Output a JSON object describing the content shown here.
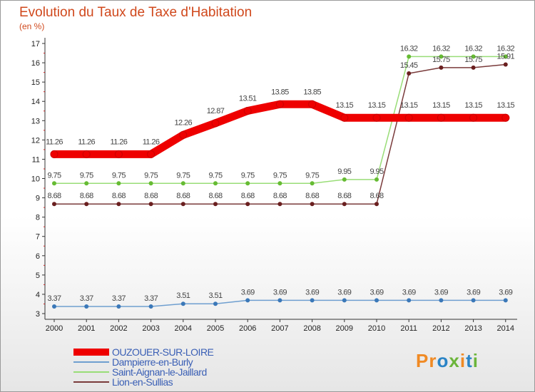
{
  "header": {
    "title": "Evolution du Taux de Taxe d'Habitation",
    "unit": "(en %)"
  },
  "logo": {
    "text": "Proxiti",
    "color_orange": "#f08a24",
    "color_blue": "#2a84c6",
    "color_green": "#6bb53a"
  },
  "chart_data": {
    "type": "line",
    "title": "Evolution du Taux de Taxe d'Habitation",
    "ylabel": "(en %)",
    "xlabel": "",
    "ylim": [
      3,
      17
    ],
    "yticks": [
      3,
      4,
      5,
      6,
      7,
      8,
      9,
      10,
      11,
      12,
      13,
      14,
      15,
      16,
      17
    ],
    "grid": false,
    "legend_position": "bottom-left",
    "categories": [
      "2000",
      "2001",
      "2002",
      "2003",
      "2004",
      "2005",
      "2006",
      "2007",
      "2008",
      "2009",
      "2010",
      "2011",
      "2012",
      "2013",
      "2014"
    ],
    "series": [
      {
        "name": "OUZOUER-SUR-LOIRE",
        "color": "#ee0000",
        "marker": "#ee0000",
        "thick": true,
        "values": [
          11.26,
          11.26,
          11.26,
          11.26,
          12.26,
          12.87,
          13.51,
          13.85,
          13.85,
          13.15,
          13.15,
          13.15,
          13.15,
          13.15,
          13.15
        ],
        "labels": [
          "11.26",
          "11.26",
          "11.26",
          "11.26",
          "12.26",
          "12.87",
          "13.51",
          "13.85",
          "13.85",
          "13.15",
          "13.15",
          "13.15",
          "13.15",
          "13.15",
          "13.15"
        ]
      },
      {
        "name": "Dampierre-en-Burly",
        "color": "#6f9fd0",
        "marker": "#3b78b8",
        "thick": false,
        "values": [
          3.37,
          3.37,
          3.37,
          3.37,
          3.51,
          3.51,
          3.69,
          3.69,
          3.69,
          3.69,
          3.69,
          3.69,
          3.69,
          3.69,
          3.69
        ],
        "labels": [
          "3.37",
          "3.37",
          "3.37",
          "3.37",
          "3.51",
          "3.51",
          "3.69",
          "3.69",
          "3.69",
          "3.69",
          "3.69",
          "3.69",
          "3.69",
          "3.69",
          "3.69"
        ]
      },
      {
        "name": "Saint-Aignan-le-Jaillard",
        "color": "#99dd77",
        "marker": "#66bb33",
        "thick": false,
        "values": [
          9.75,
          9.75,
          9.75,
          9.75,
          9.75,
          9.75,
          9.75,
          9.75,
          9.75,
          9.95,
          9.95,
          16.32,
          16.32,
          16.32,
          16.32
        ],
        "labels": [
          "9.75",
          "9.75",
          "9.75",
          "9.75",
          "9.75",
          "9.75",
          "9.75",
          "9.75",
          "9.75",
          "9.95",
          "9.95",
          "16.32",
          "16.32",
          "16.32",
          "16.32"
        ]
      },
      {
        "name": "Lion-en-Sullias",
        "color": "#7a3b3b",
        "marker": "#6a1f1f",
        "thick": false,
        "values": [
          8.68,
          8.68,
          8.68,
          8.68,
          8.68,
          8.68,
          8.68,
          8.68,
          8.68,
          8.68,
          8.68,
          15.45,
          15.75,
          15.75,
          15.91
        ],
        "labels": [
          "8.68",
          "8.68",
          "8.68",
          "8.68",
          "8.68",
          "8.68",
          "8.68",
          "8.68",
          "8.68",
          "8.68",
          "8.68",
          "15.45",
          "15.75",
          "15.75",
          "15.91"
        ]
      }
    ]
  }
}
